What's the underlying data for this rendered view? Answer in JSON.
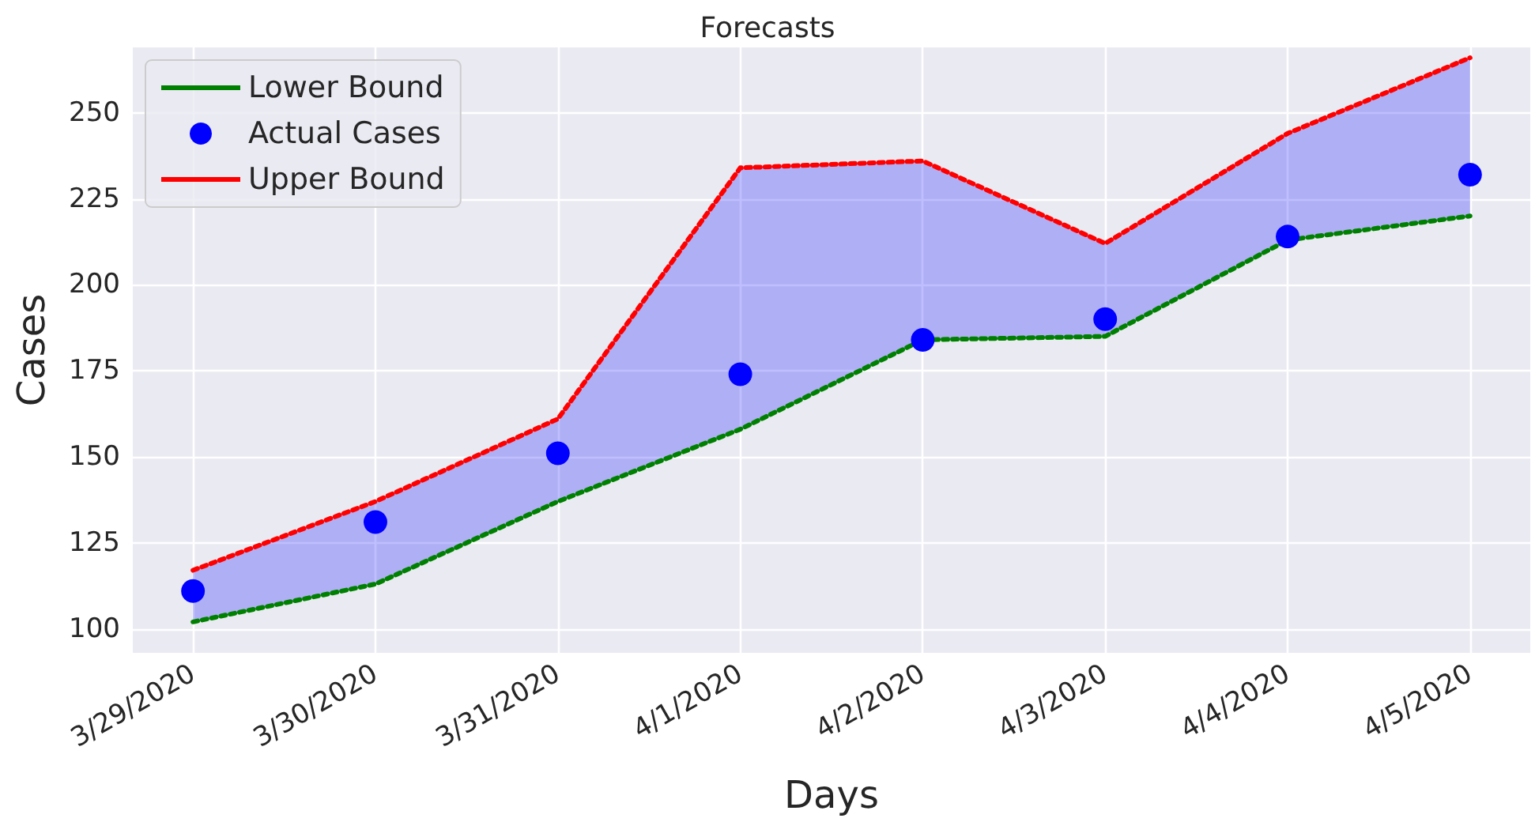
{
  "chart_data": {
    "type": "line",
    "title": "Forecasts",
    "xlabel": "Days",
    "ylabel": "Cases",
    "categories": [
      "3/29/2020",
      "3/30/2020",
      "3/31/2020",
      "4/1/2020",
      "4/2/2020",
      "4/3/2020",
      "4/4/2020",
      "4/5/2020"
    ],
    "series": [
      {
        "name": "Lower Bound",
        "color": "#008000",
        "line_style": "dotted",
        "marker": "none",
        "values": [
          102,
          113,
          137,
          158,
          184,
          185,
          213,
          220
        ]
      },
      {
        "name": "Actual Cases",
        "type": "scatter",
        "color": "#0000ff",
        "marker": "circle",
        "values": [
          111,
          131,
          151,
          174,
          184,
          190,
          214,
          232
        ],
        "lower": [
          102,
          113,
          137,
          158,
          184,
          185,
          213,
          220
        ],
        "upper": [
          117,
          137,
          161,
          234,
          236,
          212,
          244,
          266
        ]
      },
      {
        "name": "Upper Bound",
        "color": "#ff0000",
        "line_style": "dotted",
        "marker": "none",
        "values": [
          117,
          137,
          161,
          234,
          236,
          212,
          244,
          266
        ]
      }
    ],
    "ylim": [
      93,
      269
    ],
    "yticks": [
      100,
      125,
      150,
      175,
      200,
      225,
      250
    ],
    "grid": true,
    "legend": "top left"
  }
}
